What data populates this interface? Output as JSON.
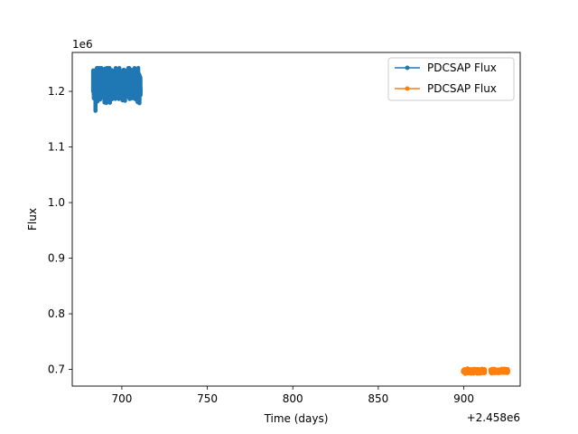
{
  "chart_data": {
    "type": "line",
    "xlabel": "Time (days)",
    "ylabel": "Flux",
    "x_offset_label": "+2.458e6",
    "y_scale_label": "1e6",
    "xlim": [
      671,
      933
    ],
    "ylim": [
      0.67,
      1.27
    ],
    "xticks": [
      700,
      750,
      800,
      850,
      900
    ],
    "yticks": [
      0.7,
      0.8,
      0.9,
      1.0,
      1.1,
      1.2
    ],
    "ytick_labels": [
      "0.7",
      "0.8",
      "0.9",
      "1.0",
      "1.1",
      "1.2"
    ],
    "legend_position": "upper right",
    "series": [
      {
        "name": "PDCSAP Flux",
        "color": "#1f77b4",
        "x_range": [
          683.2,
          711.0
        ],
        "gap": [
          697.4,
          698.2
        ],
        "center": 1.213,
        "amplitude": 0.022,
        "extremes": [
          1.165,
          1.242
        ]
      },
      {
        "name": "PDCSAP Flux",
        "color": "#ff7f0e",
        "x_range": [
          899.5,
          926.0
        ],
        "gap": [
          912.4,
          915.6
        ],
        "center": 0.697,
        "amplitude": 0.003,
        "extremes": [
          0.692,
          0.702
        ]
      }
    ]
  }
}
